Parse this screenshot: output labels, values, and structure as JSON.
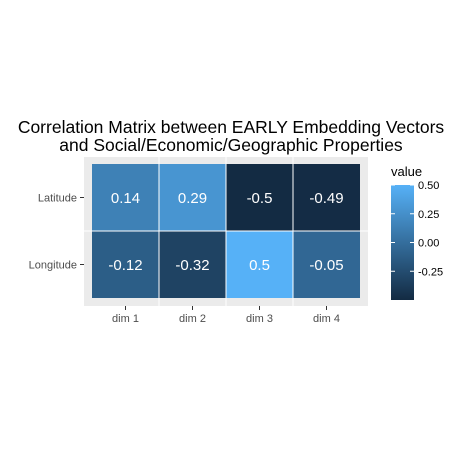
{
  "chart_data": {
    "type": "heatmap",
    "title_lines": [
      "Correlation Matrix between EARLY Embedding Vectors",
      "and Social/Economic/Geographic Properties"
    ],
    "x_categories": [
      "dim 1",
      "dim 2",
      "dim 3",
      "dim 4"
    ],
    "y_categories": [
      "Latitude",
      "Longitude"
    ],
    "values": [
      [
        0.14,
        0.29,
        -0.5,
        -0.49
      ],
      [
        -0.12,
        -0.32,
        0.5,
        -0.05
      ]
    ],
    "cell_labels": [
      [
        "0.14",
        "0.29",
        "-0.5",
        "-0.49"
      ],
      [
        "-0.12",
        "-0.32",
        "0.5",
        "-0.05"
      ]
    ],
    "legend": {
      "title": "value",
      "breaks": [
        0.5,
        0.25,
        0.0,
        -0.25
      ],
      "break_labels": [
        "0.50",
        "0.25",
        "0.00",
        "-0.25"
      ],
      "range": [
        -0.5,
        0.5
      ],
      "low_color": "#132B43",
      "high_color": "#56B1F7",
      "position": "right"
    },
    "panel_background": "#EBEBEB",
    "grid": true
  }
}
